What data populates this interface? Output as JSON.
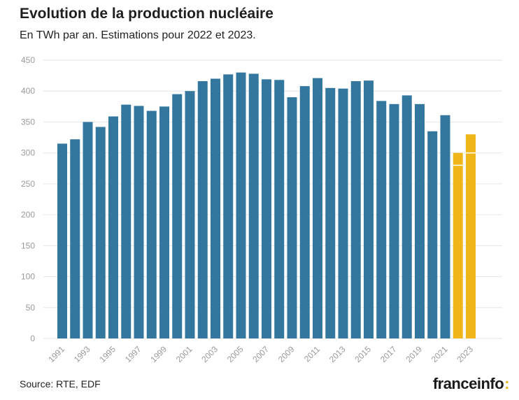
{
  "header": {
    "title": "Evolution de la production nucléaire",
    "subtitle": "En TWh par an. Estimations pour 2022 et 2023."
  },
  "footer": {
    "source": "Source: RTE, EDF",
    "logo_text": "franceinfo",
    "logo_colon": ":"
  },
  "colors": {
    "actual": "#33779e",
    "estimate": "#f0b619",
    "grid": "#e6e6e6",
    "axis_text": "#9a9a9a"
  },
  "chart_data": {
    "type": "bar",
    "title": "Evolution de la production nucléaire",
    "subtitle": "En TWh par an. Estimations pour 2022 et 2023.",
    "xlabel": "",
    "ylabel": "",
    "ylim": [
      0,
      450
    ],
    "yticks": [
      0,
      50,
      100,
      150,
      200,
      250,
      300,
      350,
      400,
      450
    ],
    "grid": true,
    "categories": [
      "1991",
      "1992",
      "1993",
      "1994",
      "1995",
      "1996",
      "1997",
      "1998",
      "1999",
      "2000",
      "2001",
      "2002",
      "2003",
      "2004",
      "2005",
      "2006",
      "2007",
      "2008",
      "2009",
      "2010",
      "2011",
      "2012",
      "2013",
      "2014",
      "2015",
      "2016",
      "2017",
      "2018",
      "2019",
      "2020",
      "2021",
      "2022",
      "2023"
    ],
    "xtick_labels": [
      "1991",
      "1993",
      "1995",
      "1997",
      "1999",
      "2001",
      "2003",
      "2005",
      "2007",
      "2009",
      "2011",
      "2013",
      "2015",
      "2017",
      "2019",
      "2021",
      "2023"
    ],
    "values": [
      315,
      322,
      350,
      342,
      359,
      378,
      376,
      368,
      375,
      395,
      400,
      416,
      420,
      427,
      430,
      428,
      419,
      418,
      390,
      408,
      421,
      405,
      404,
      416,
      417,
      384,
      379,
      393,
      379,
      335,
      361,
      300,
      330
    ],
    "estimated": [
      "2022",
      "2023"
    ],
    "estimate_ranges": {
      "2022": [
        280,
        300
      ],
      "2023": [
        300,
        330
      ]
    }
  }
}
